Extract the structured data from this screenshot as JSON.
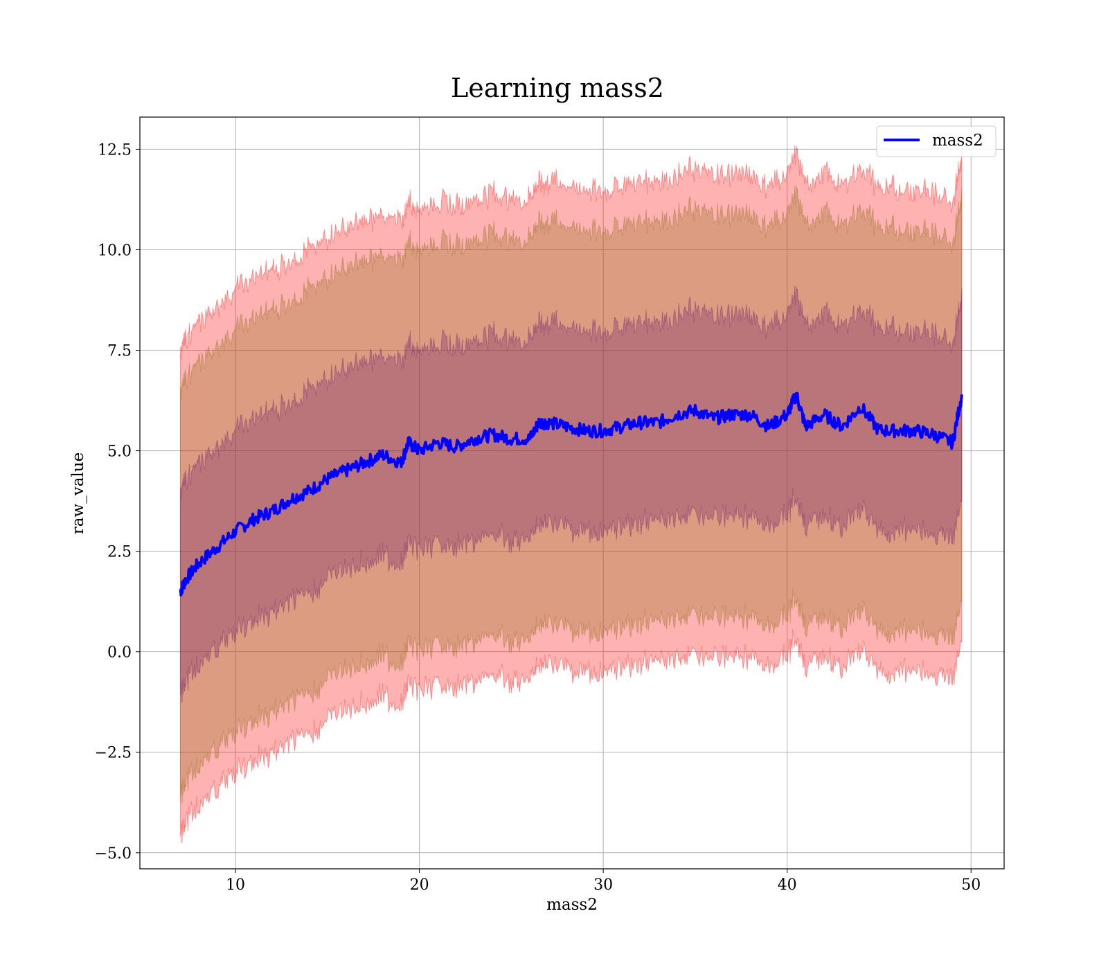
{
  "chart_data": {
    "type": "area",
    "title": "Learning mass2",
    "xlabel": "mass2",
    "ylabel": "raw_value",
    "xlim": [
      4.8,
      51.8
    ],
    "ylim": [
      -5.4,
      13.3
    ],
    "xticks": [
      10,
      20,
      30,
      40,
      50
    ],
    "xtick_labels": [
      "10",
      "20",
      "30",
      "40",
      "50"
    ],
    "yticks": [
      -5.0,
      -2.5,
      0.0,
      2.5,
      5.0,
      7.5,
      10.0,
      12.5
    ],
    "ytick_labels": [
      "−5.0",
      "−2.5",
      "0.0",
      "2.5",
      "5.0",
      "7.5",
      "10.0",
      "12.5"
    ],
    "grid": true,
    "legend": {
      "position": "top-right",
      "entries": [
        {
          "label": "mass2",
          "color": "#0000ff"
        }
      ]
    },
    "colors": {
      "mean_line": "#0000ff",
      "band_outer": "#ff0000",
      "band_mid": "#8b6914",
      "band_inner": "#6a1b6a"
    },
    "series": [
      {
        "name": "mass2",
        "x": [
          7.0,
          7.3,
          8,
          9,
          10,
          11,
          12,
          13,
          14,
          15,
          16,
          17,
          18,
          19,
          19.4,
          20,
          21,
          22,
          23,
          24,
          25,
          26,
          26.5,
          27,
          28,
          29,
          30,
          31,
          32,
          33,
          34,
          35,
          36,
          37,
          38,
          39,
          40,
          40.5,
          41,
          42,
          43,
          44,
          45,
          46,
          47,
          48,
          49,
          49.5
        ],
        "mean": [
          1.5,
          1.8,
          2.2,
          2.6,
          3.0,
          3.3,
          3.5,
          3.8,
          4.0,
          4.3,
          4.5,
          4.7,
          4.9,
          4.7,
          5.2,
          5.0,
          5.2,
          5.1,
          5.3,
          5.4,
          5.3,
          5.3,
          5.7,
          5.7,
          5.6,
          5.5,
          5.5,
          5.6,
          5.7,
          5.7,
          5.9,
          6.0,
          5.8,
          5.9,
          5.9,
          5.6,
          5.9,
          6.4,
          5.6,
          5.9,
          5.6,
          6.1,
          5.5,
          5.5,
          5.5,
          5.4,
          5.2,
          6.4
        ]
      }
    ],
    "bands": [
      {
        "label": "outer",
        "half_width": 6.0
      },
      {
        "label": "mid",
        "half_width": 5.0
      },
      {
        "label": "inner",
        "half_width": 2.5
      }
    ]
  }
}
